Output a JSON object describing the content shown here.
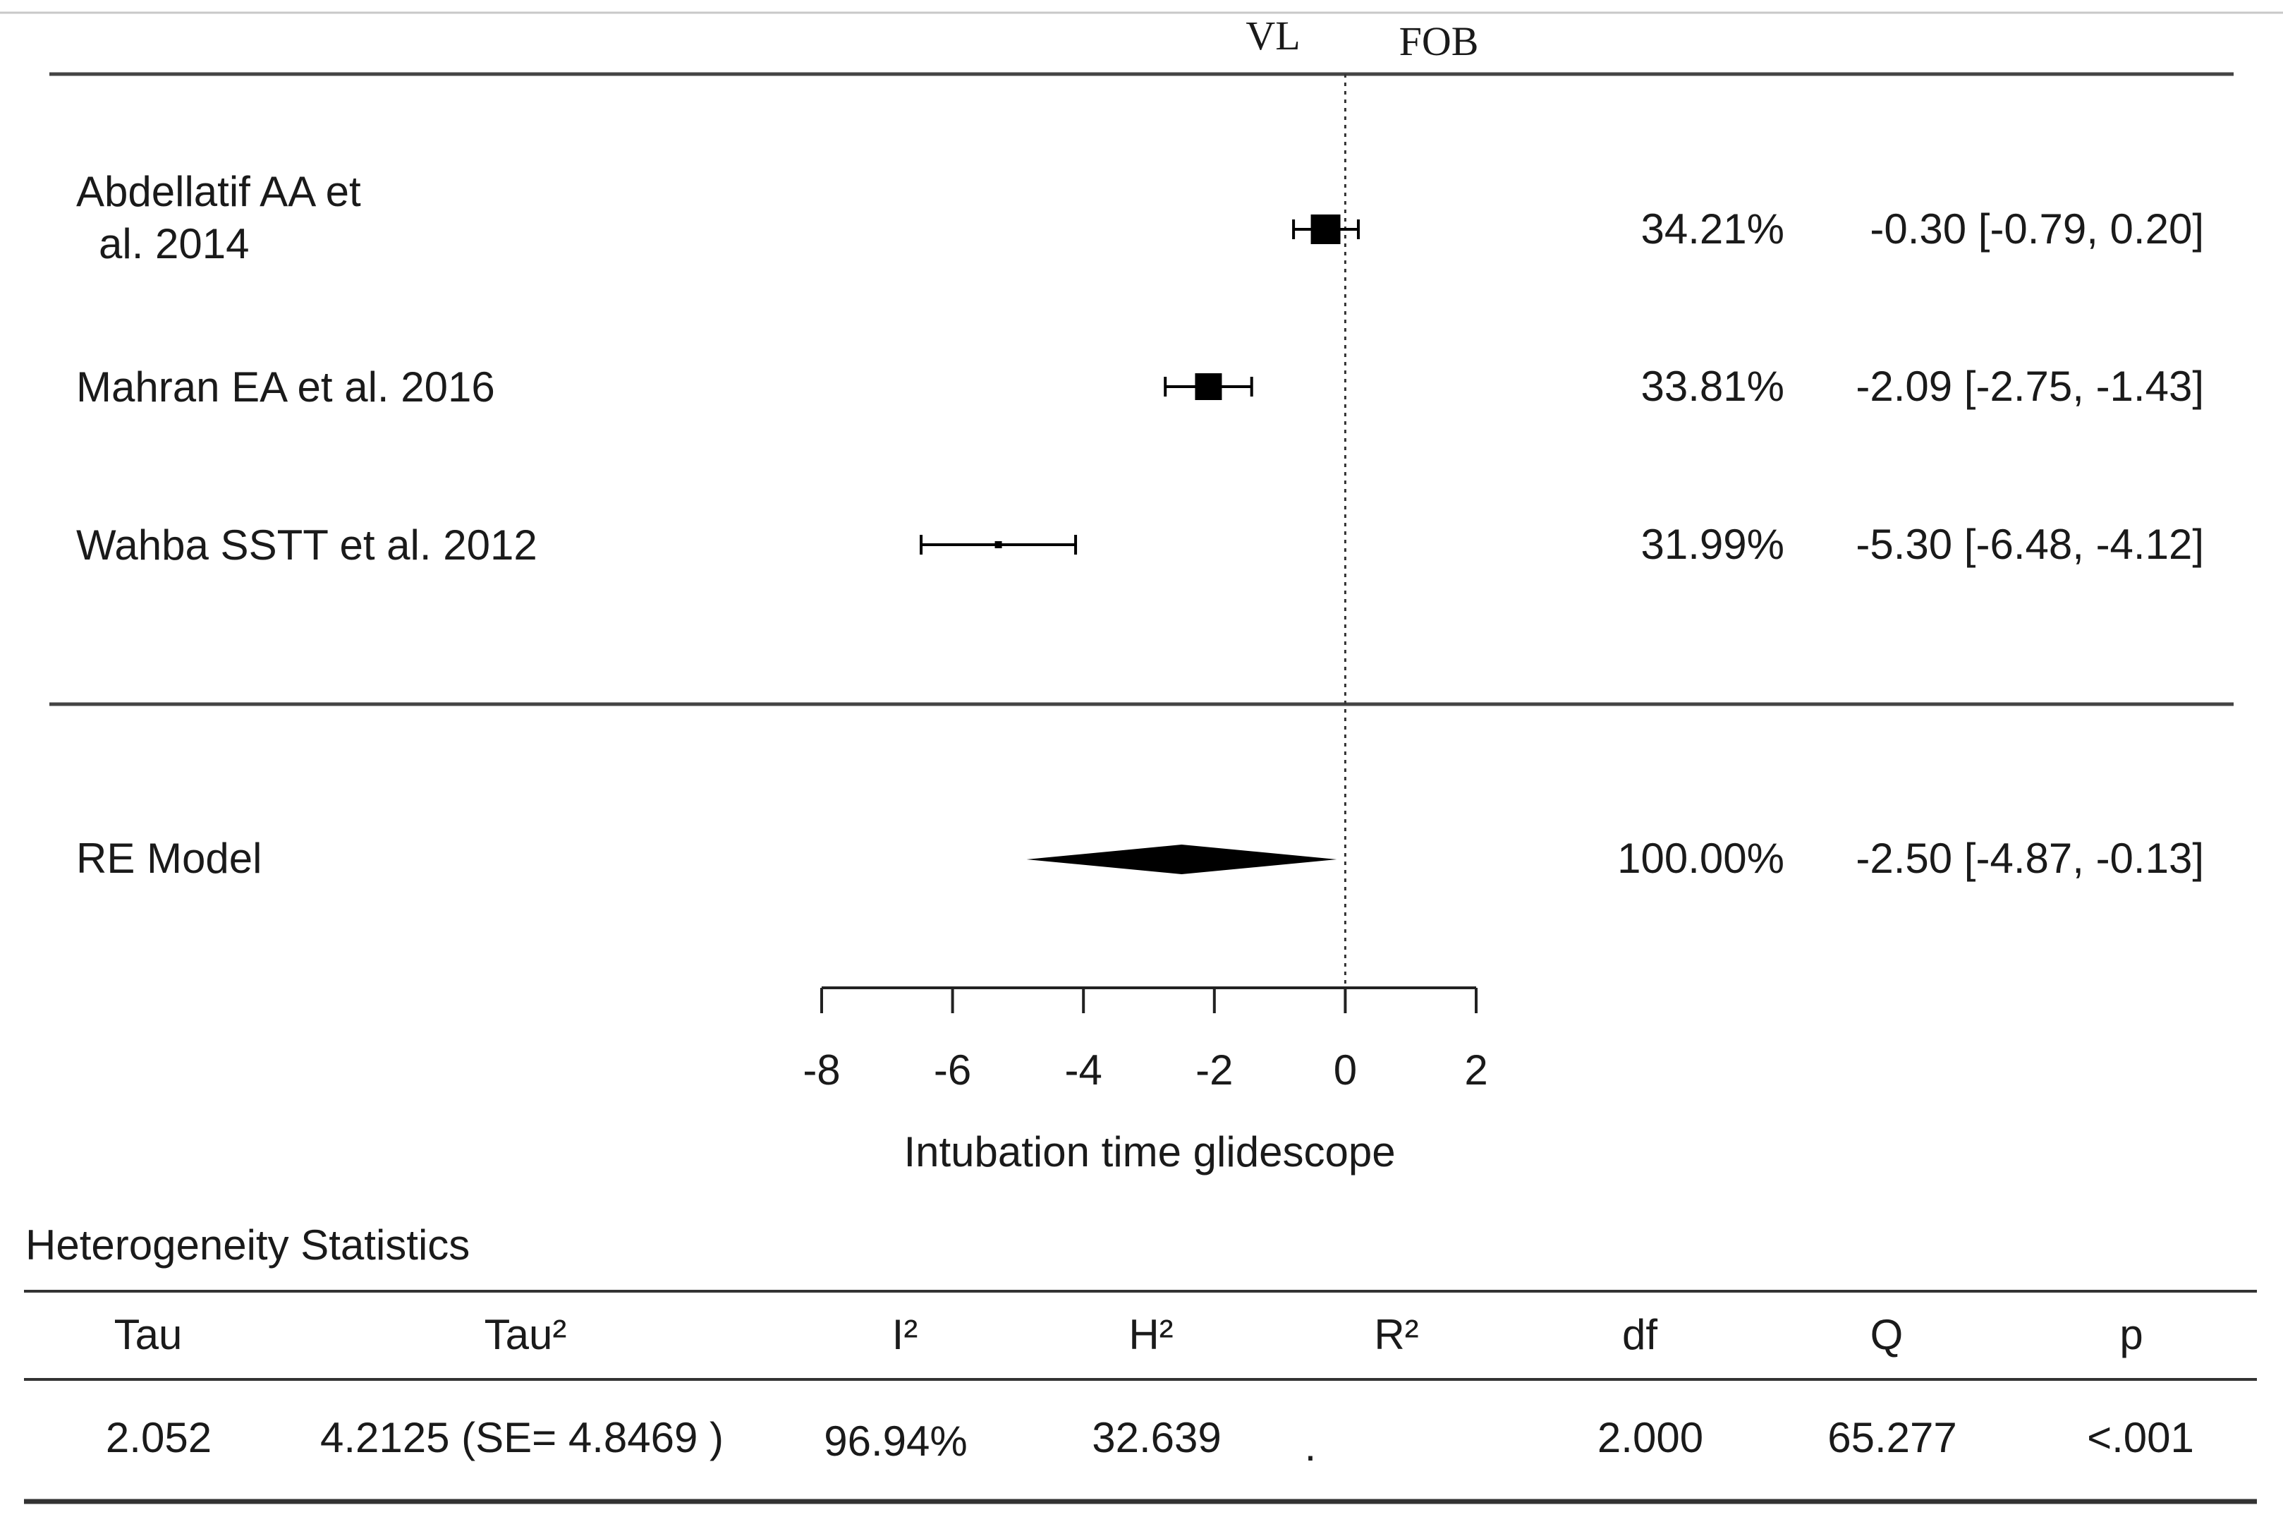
{
  "chart_data": {
    "type": "forest",
    "direction_labels": {
      "left": "VL",
      "right": "FOB"
    },
    "studies": [
      {
        "label_lines": [
          "Abdellatif AA et",
          "al. 2014"
        ],
        "weight": "34.21%",
        "estimate": -0.3,
        "ci_low": -0.79,
        "ci_high": 0.2,
        "ci_text": "-0.30 [-0.79,  0.20]"
      },
      {
        "label_lines": [
          "Mahran EA et al. 2016"
        ],
        "weight": "33.81%",
        "estimate": -2.09,
        "ci_low": -2.75,
        "ci_high": -1.43,
        "ci_text": "-2.09 [-2.75, -1.43]"
      },
      {
        "label_lines": [
          "Wahba SSTT et al. 2012"
        ],
        "weight": "31.99%",
        "estimate": -5.3,
        "ci_low": -6.48,
        "ci_high": -4.12,
        "ci_text": "-5.30 [-6.48, -4.12]"
      }
    ],
    "summary": {
      "label": "RE Model",
      "weight": "100.00%",
      "estimate": -2.5,
      "ci_low": -4.87,
      "ci_high": -0.13,
      "ci_text": "-2.50 [-4.87, -0.13]"
    },
    "xaxis": {
      "ticks": [
        -8,
        -6,
        -4,
        -2,
        0,
        2
      ],
      "tick_labels": [
        "-8",
        "-6",
        "-4",
        "-2",
        "0",
        "2"
      ],
      "range": [
        -8,
        2
      ],
      "reference_line": 0,
      "label": "Intubation time glidescope"
    }
  },
  "heterogeneity": {
    "title": "Heterogeneity Statistics",
    "headers": [
      "Tau",
      "Tau²",
      "I²",
      "H²",
      "R²",
      "df",
      "Q",
      "p"
    ],
    "values": [
      "2.052",
      "4.2125 (SE= 4.8469 )",
      "96.94%",
      "32.639",
      ".",
      "2.000",
      "65.277",
      "<.001"
    ]
  }
}
